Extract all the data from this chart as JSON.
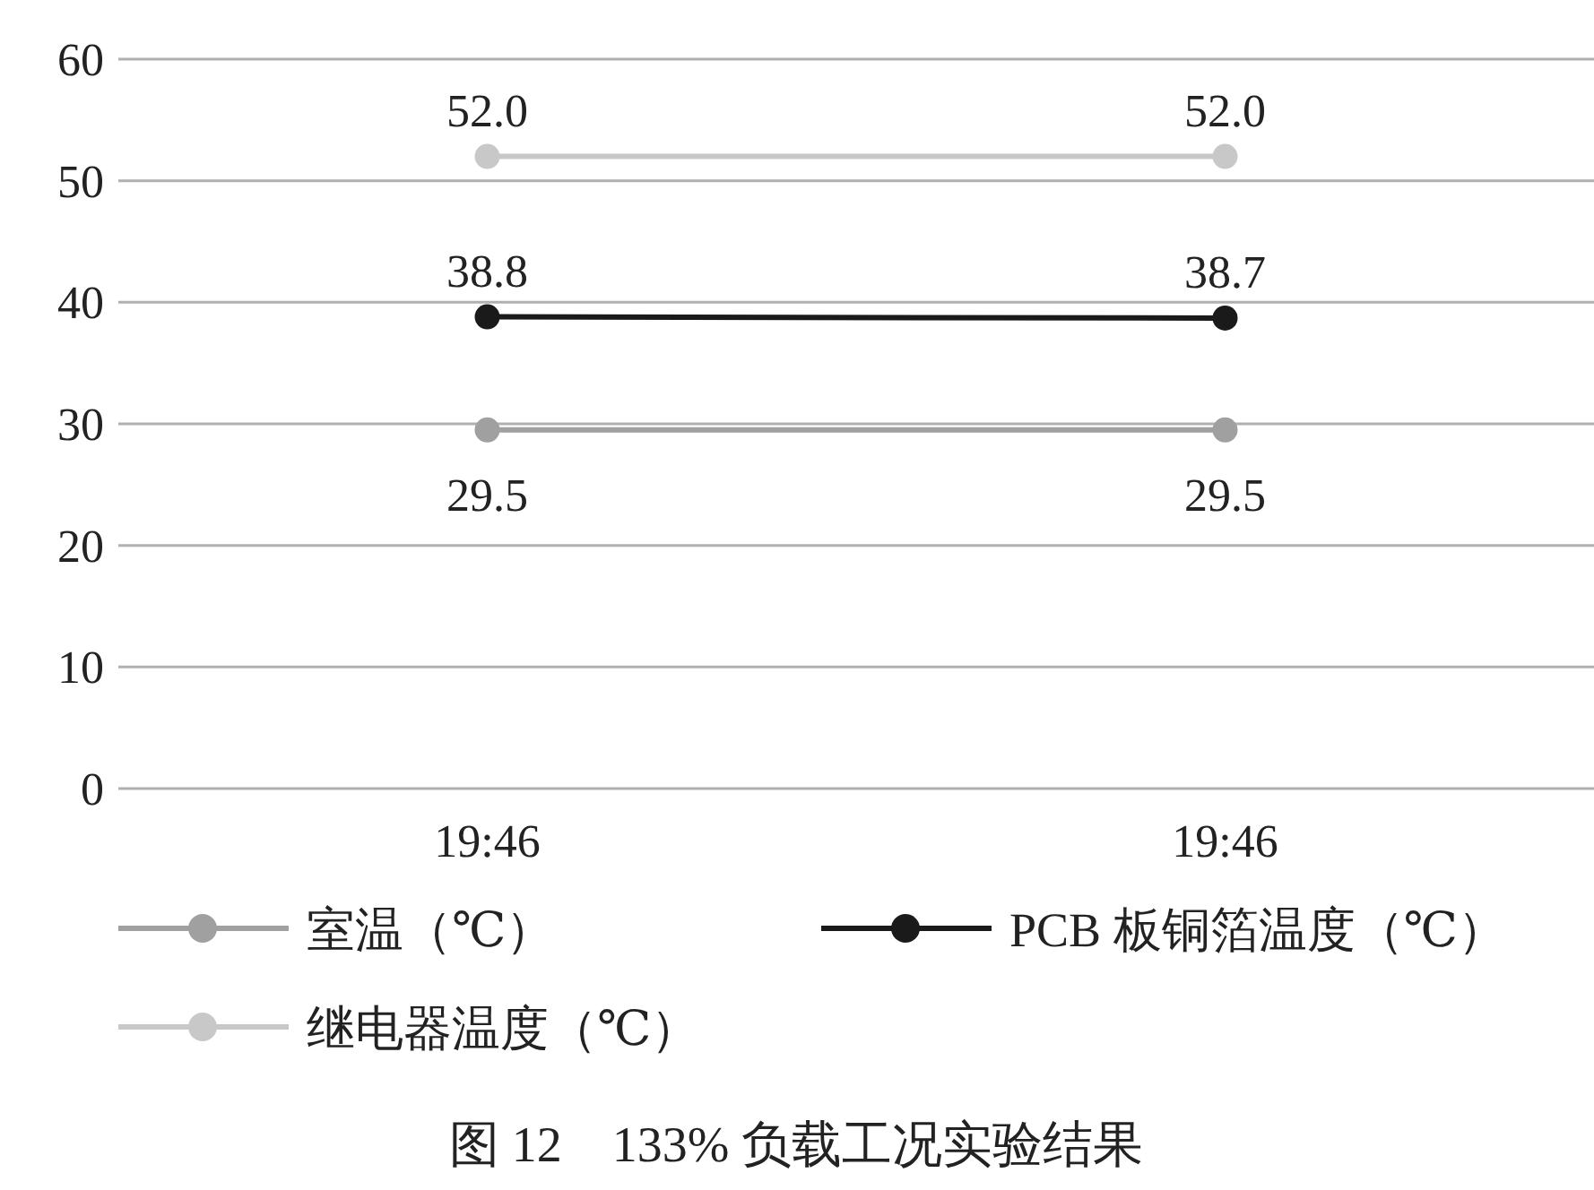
{
  "chart_data": {
    "type": "line",
    "title": "图 12　133% 负载工况实验结果",
    "categories": [
      "19:46",
      "19:46"
    ],
    "series": [
      {
        "name": "室温（℃）",
        "color": "#a0a0a0",
        "values": [
          29.5,
          29.5
        ],
        "value_labels": [
          "29.5",
          "29.5"
        ]
      },
      {
        "name": "PCB 板铜箔温度（℃）",
        "color": "#1a1a1a",
        "values": [
          38.8,
          38.7
        ],
        "value_labels": [
          "38.8",
          "38.7"
        ]
      },
      {
        "name": "继电器温度（℃）",
        "color": "#c8c8c8",
        "values": [
          52.0,
          52.0
        ],
        "value_labels": [
          "52.0",
          "52.0"
        ]
      }
    ],
    "ylim": [
      0,
      60
    ],
    "yticks": [
      0,
      10,
      20,
      30,
      40,
      50,
      60
    ],
    "grid": "y",
    "legend": "bottom",
    "marker": "circle",
    "line_style": "solid"
  }
}
